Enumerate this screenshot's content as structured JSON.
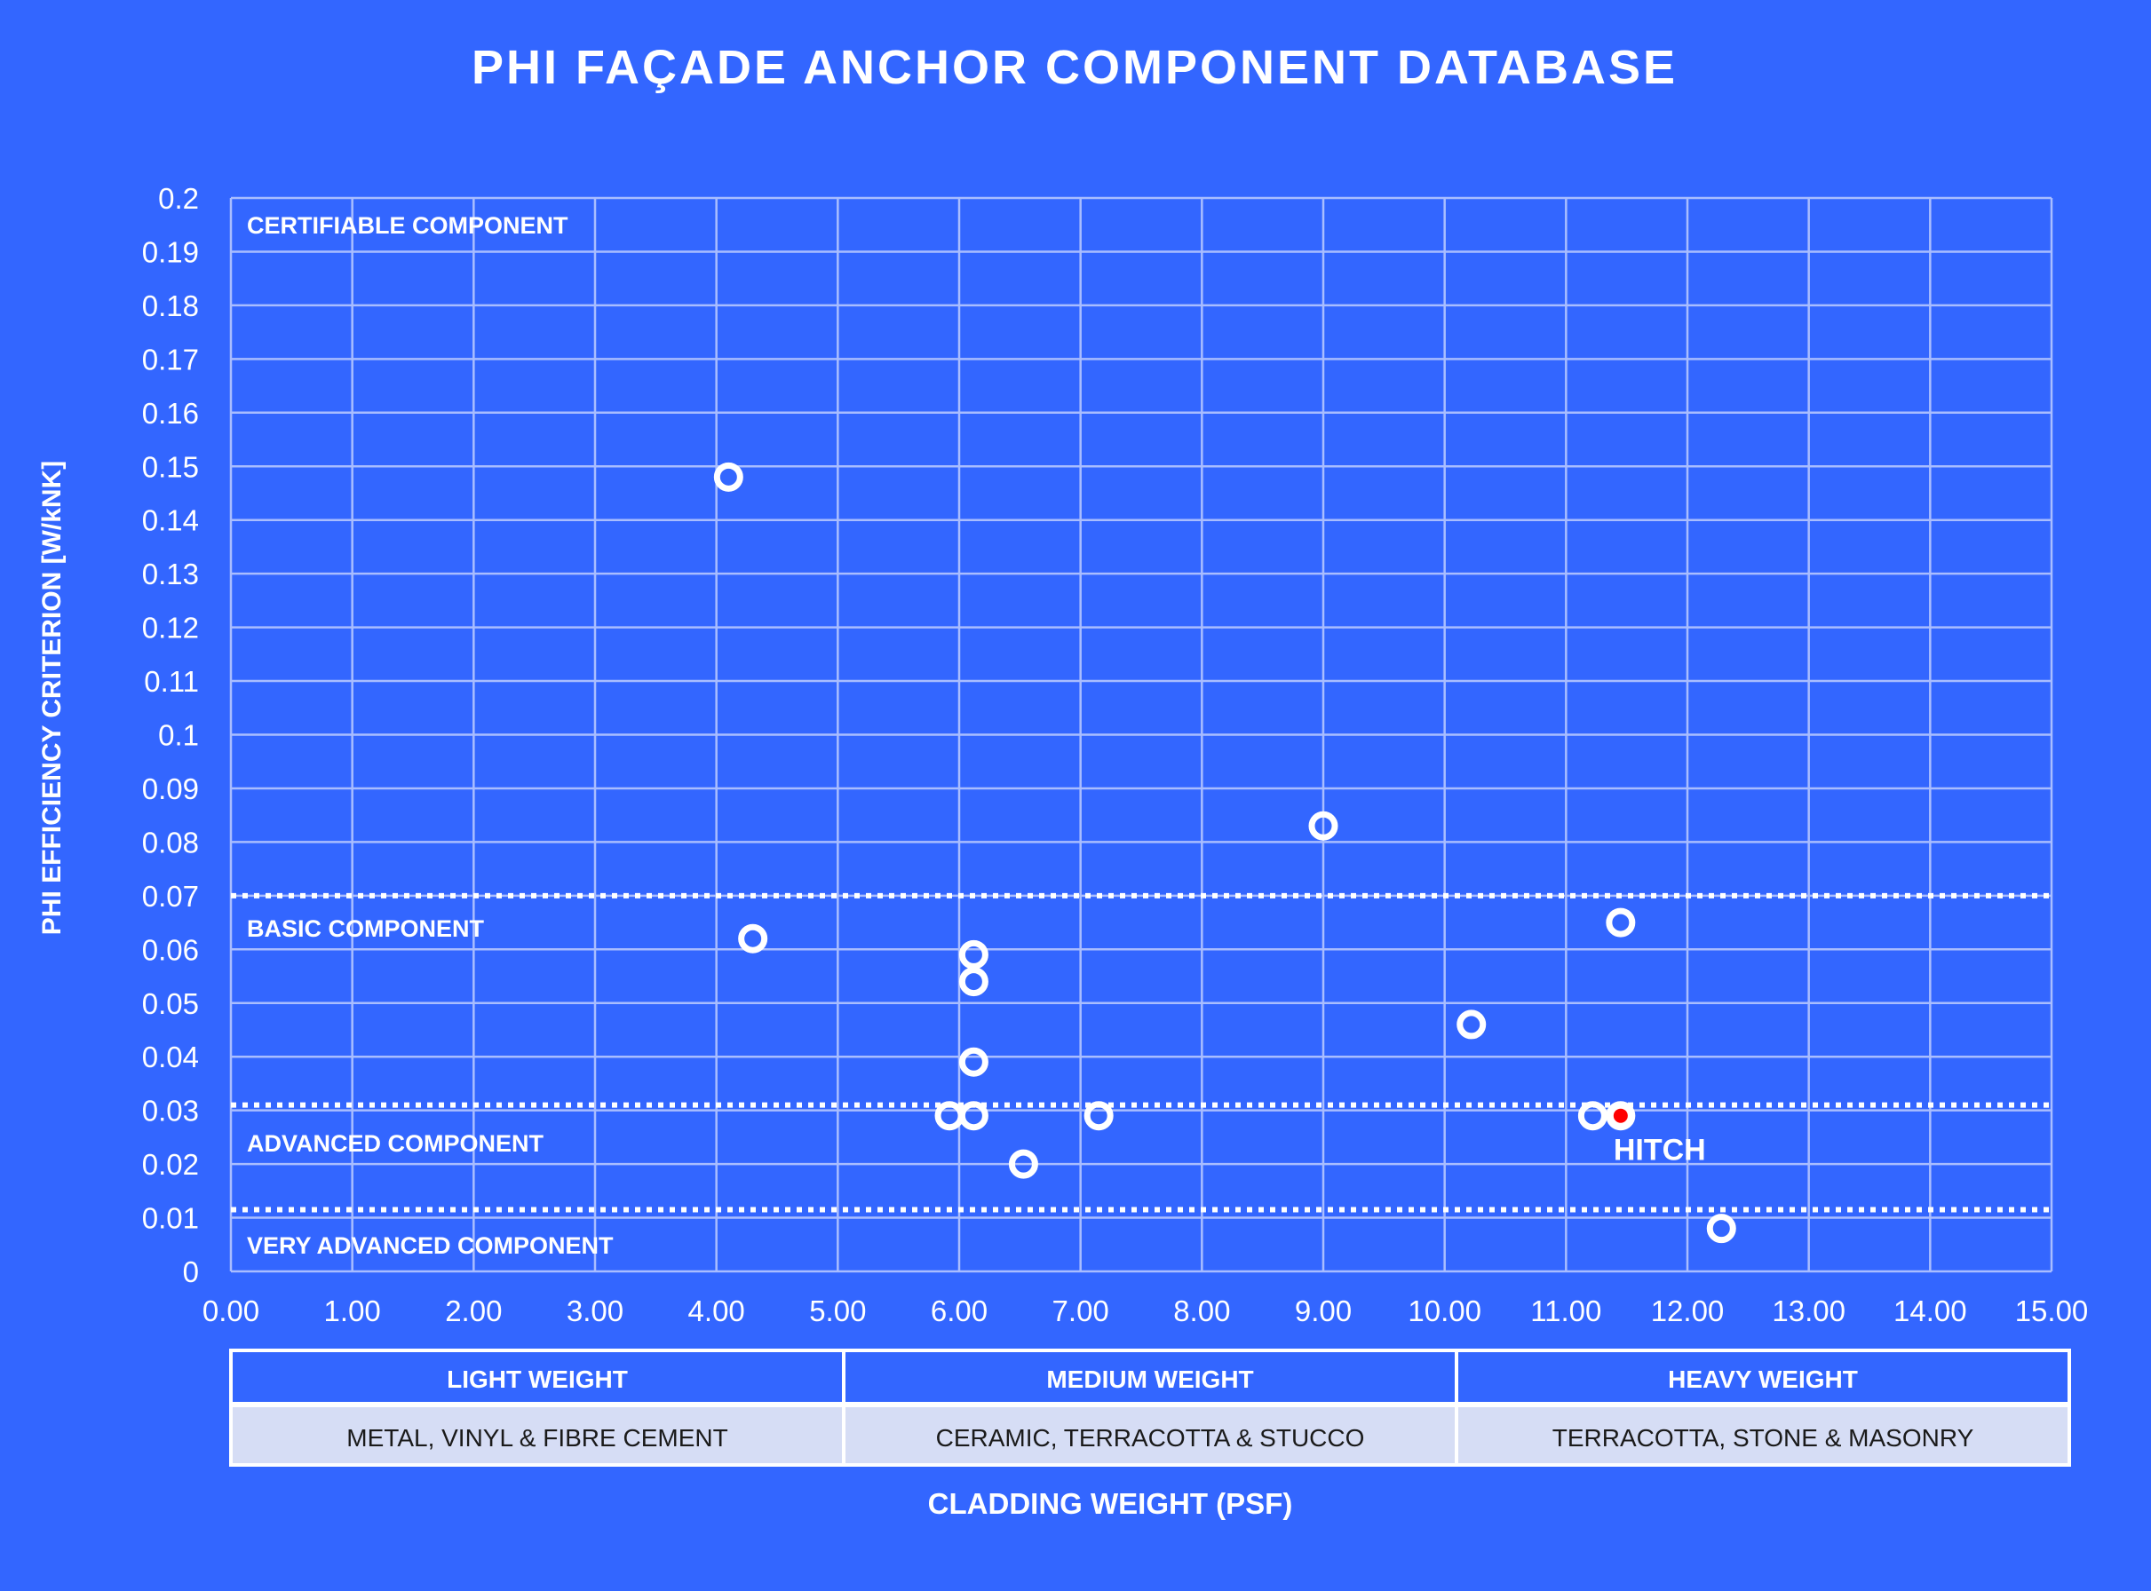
{
  "chart_data": {
    "type": "scatter",
    "title": "PHI FAÇADE ANCHOR COMPONENT DATABASE",
    "xlabel": "CLADDING WEIGHT (PSF)",
    "ylabel": "PHI EFFICIENCY CRITERION [W/kNK]",
    "xlim": [
      0,
      15
    ],
    "ylim": [
      0,
      0.2
    ],
    "x_ticks": [
      "0.00",
      "1.00",
      "2.00",
      "3.00",
      "4.00",
      "5.00",
      "6.00",
      "7.00",
      "8.00",
      "9.00",
      "10.00",
      "11.00",
      "12.00",
      "13.00",
      "14.00",
      "15.00"
    ],
    "y_ticks": [
      "0",
      "0.01",
      "0.02",
      "0.03",
      "0.04",
      "0.05",
      "0.06",
      "0.07",
      "0.08",
      "0.09",
      "0.1",
      "0.11",
      "0.12",
      "0.13",
      "0.14",
      "0.15",
      "0.16",
      "0.17",
      "0.18",
      "0.19",
      "0.2"
    ],
    "grid": true,
    "series": [
      {
        "values": [
          {
            "x": 4.1,
            "y": 0.148
          },
          {
            "x": 4.3,
            "y": 0.062
          },
          {
            "x": 6.12,
            "y": 0.059
          },
          {
            "x": 6.12,
            "y": 0.054
          },
          {
            "x": 6.12,
            "y": 0.039
          },
          {
            "x": 5.92,
            "y": 0.029
          },
          {
            "x": 6.12,
            "y": 0.029
          },
          {
            "x": 6.53,
            "y": 0.02
          },
          {
            "x": 7.15,
            "y": 0.029
          },
          {
            "x": 9.0,
            "y": 0.083
          },
          {
            "x": 10.22,
            "y": 0.046
          },
          {
            "x": 11.22,
            "y": 0.029
          },
          {
            "x": 11.45,
            "y": 0.065
          },
          {
            "x": 12.28,
            "y": 0.008
          }
        ]
      }
    ],
    "highlight": {
      "x": 11.45,
      "y": 0.029,
      "label": "HITCH",
      "color": "#ff0000"
    },
    "thresholds": [
      {
        "y": 0.07
      },
      {
        "y": 0.031
      },
      {
        "y": 0.0115
      }
    ],
    "zones": [
      {
        "label": "CERTIFIABLE COMPONENT",
        "y": 0.195
      },
      {
        "label": "BASIC COMPONENT",
        "y": 0.064
      },
      {
        "label": "ADVANCED COMPONENT",
        "y": 0.024
      },
      {
        "label": "VERY ADVANCED COMPONENT",
        "y": 0.005
      }
    ]
  },
  "weight_table": {
    "columns": [
      {
        "title": "LIGHT WEIGHT",
        "subtitle": "METAL, VINYL & FIBRE CEMENT"
      },
      {
        "title": "MEDIUM WEIGHT",
        "subtitle": "CERAMIC, TERRACOTTA & STUCCO"
      },
      {
        "title": "HEAVY WEIGHT",
        "subtitle": "TERRACOTTA, STONE & MASONRY"
      }
    ]
  },
  "colors": {
    "background": "#3366ff",
    "grid": "#a9bdff",
    "marker": "#ffffff",
    "table_header": "#3366ff",
    "table_row": "#d6ddf5",
    "table_row_text": "#1a1a1a"
  }
}
